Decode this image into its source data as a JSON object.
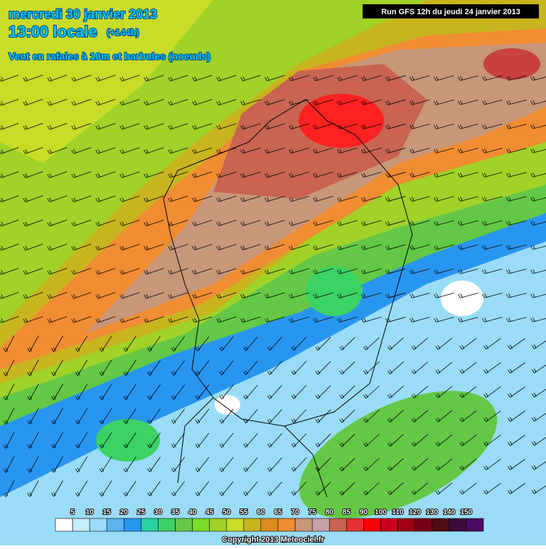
{
  "header": {
    "date": "mercredi 30 janvier 2013",
    "time": "13:00 locale",
    "lead": "(+144h)",
    "subtitle": "Vent en rafales à 10m et barbules (noeuds)"
  },
  "run": "Run GFS 12h du jeudi 24 janvier 2013",
  "legend": {
    "labels": [
      5,
      10,
      15,
      20,
      25,
      30,
      35,
      40,
      45,
      50,
      55,
      60,
      65,
      70,
      75,
      80,
      85,
      90,
      100,
      110,
      120,
      130,
      140,
      150
    ],
    "colors": [
      "#ffffff",
      "#c6ecfc",
      "#9adcf8",
      "#5ab4f0",
      "#2896f0",
      "#28d2a0",
      "#3cd264",
      "#64c846",
      "#78dc28",
      "#a0d228",
      "#c8dc28",
      "#c8b41e",
      "#dc8c1e",
      "#f08c32",
      "#c89678",
      "#c8a0aa",
      "#c86450",
      "#e63232",
      "#ff0000",
      "#c8001e",
      "#a00014",
      "#780014",
      "#500a14",
      "#3c0a3c",
      "#4b0a64"
    ]
  },
  "copyright": "Copyright 2013 Meteociel.fr"
}
